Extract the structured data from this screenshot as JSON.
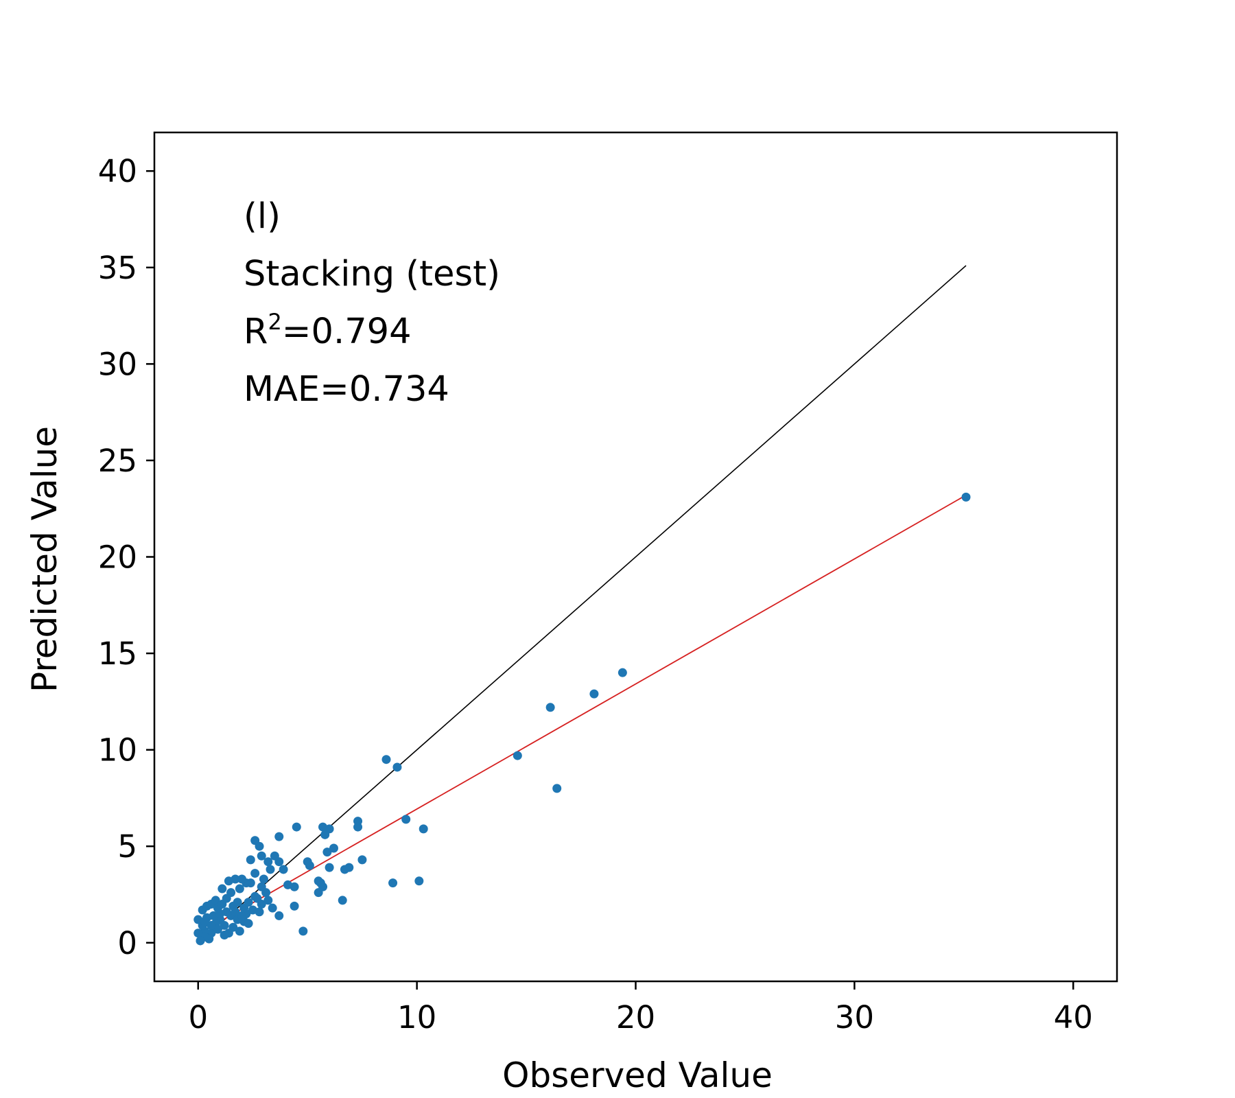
{
  "chart_data": {
    "type": "scatter",
    "xlabel": "Observed Value",
    "ylabel": "Predicted Value",
    "xlim": [
      -2,
      42
    ],
    "ylim": [
      -2,
      42
    ],
    "x_ticks": [
      0,
      10,
      20,
      30,
      40
    ],
    "y_ticks": [
      0,
      5,
      10,
      15,
      20,
      25,
      30,
      35,
      40
    ],
    "grid": false,
    "annotations": {
      "panel": "(l)",
      "model": "Stacking (test)",
      "r2_label": "R",
      "r2_sup": "2",
      "r2_value": "=0.794",
      "mae": "MAE=0.734"
    },
    "identity_line": {
      "x": [
        0,
        35.1
      ],
      "y": [
        0,
        35.1
      ],
      "color": "#000000"
    },
    "fit_line": {
      "x": [
        0,
        35.1
      ],
      "y": [
        0.45,
        23.2
      ],
      "color": "#d62020"
    },
    "point_color": "#1f77b4",
    "points": [
      [
        35.1,
        23.1
      ],
      [
        19.4,
        14.0
      ],
      [
        18.1,
        12.9
      ],
      [
        16.1,
        12.2
      ],
      [
        16.4,
        8.0
      ],
      [
        14.6,
        9.7
      ],
      [
        8.6,
        9.5
      ],
      [
        9.1,
        9.1
      ],
      [
        10.3,
        5.9
      ],
      [
        9.5,
        6.4
      ],
      [
        8.9,
        3.1
      ],
      [
        10.1,
        3.2
      ],
      [
        7.3,
        6.3
      ],
      [
        7.3,
        6.0
      ],
      [
        7.5,
        4.3
      ],
      [
        6.9,
        3.9
      ],
      [
        6.7,
        3.8
      ],
      [
        6.6,
        2.2
      ],
      [
        6.0,
        5.9
      ],
      [
        5.7,
        6.0
      ],
      [
        5.8,
        5.6
      ],
      [
        6.2,
        4.9
      ],
      [
        5.9,
        4.7
      ],
      [
        6.0,
        3.9
      ],
      [
        5.6,
        3.1
      ],
      [
        5.7,
        2.9
      ],
      [
        5.5,
        2.6
      ],
      [
        5.5,
        3.2
      ],
      [
        5.1,
        4.0
      ],
      [
        5.0,
        4.2
      ],
      [
        4.8,
        0.6
      ],
      [
        4.5,
        6.0
      ],
      [
        3.7,
        5.5
      ],
      [
        3.7,
        4.2
      ],
      [
        3.5,
        4.5
      ],
      [
        3.9,
        3.8
      ],
      [
        4.1,
        3.0
      ],
      [
        4.4,
        2.9
      ],
      [
        4.4,
        1.9
      ],
      [
        3.7,
        1.4
      ],
      [
        3.3,
        3.8
      ],
      [
        3.2,
        4.2
      ],
      [
        2.9,
        4.5
      ],
      [
        2.6,
        5.3
      ],
      [
        2.8,
        5.0
      ],
      [
        2.4,
        4.3
      ],
      [
        2.6,
        3.6
      ],
      [
        2.4,
        3.1
      ],
      [
        2.2,
        3.1
      ],
      [
        2.0,
        3.3
      ],
      [
        1.9,
        2.8
      ],
      [
        1.7,
        3.3
      ],
      [
        1.4,
        3.2
      ],
      [
        1.1,
        2.8
      ],
      [
        1.5,
        2.6
      ],
      [
        2.6,
        2.4
      ],
      [
        3.1,
        2.6
      ],
      [
        2.9,
        2.0
      ],
      [
        3.4,
        1.8
      ],
      [
        3.2,
        2.2
      ],
      [
        2.1,
        1.1
      ],
      [
        1.9,
        0.6
      ],
      [
        1.6,
        0.8
      ],
      [
        1.4,
        0.5
      ],
      [
        1.2,
        0.4
      ],
      [
        1.0,
        1.2
      ],
      [
        0.8,
        1.0
      ],
      [
        0.6,
        0.5
      ],
      [
        0.5,
        0.2
      ],
      [
        0.3,
        0.6
      ],
      [
        0.2,
        1.7
      ],
      [
        0.4,
        1.9
      ],
      [
        0.6,
        2.0
      ],
      [
        0.8,
        2.2
      ],
      [
        0.9,
        1.8
      ],
      [
        1.1,
        2.0
      ],
      [
        1.3,
        2.3
      ],
      [
        1.3,
        1.6
      ],
      [
        1.5,
        1.4
      ],
      [
        1.6,
        1.9
      ],
      [
        1.7,
        1.6
      ],
      [
        1.8,
        2.1
      ],
      [
        2.1,
        1.8
      ],
      [
        2.2,
        1.5
      ],
      [
        2.3,
        2.1
      ],
      [
        2.5,
        1.7
      ],
      [
        2.7,
        2.3
      ],
      [
        2.8,
        1.6
      ],
      [
        2.9,
        2.9
      ],
      [
        3.0,
        3.3
      ],
      [
        0.2,
        0.9
      ],
      [
        0.3,
        0.3
      ],
      [
        0.1,
        0.1
      ],
      [
        0.0,
        0.5
      ],
      [
        0.0,
        1.2
      ],
      [
        0.4,
        1.3
      ],
      [
        0.7,
        1.4
      ],
      [
        1.0,
        1.5
      ],
      [
        1.2,
        0.9
      ],
      [
        1.8,
        1.2
      ],
      [
        2.0,
        1.4
      ],
      [
        2.3,
        1.0
      ],
      [
        0.9,
        0.7
      ],
      [
        0.6,
        0.9
      ],
      [
        0.3,
        1.1
      ]
    ]
  }
}
